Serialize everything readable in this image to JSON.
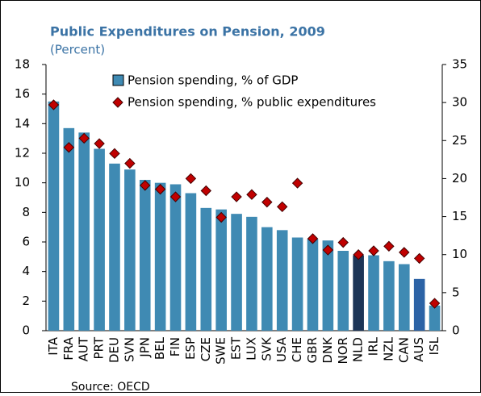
{
  "chart_data": {
    "type": "bar_line",
    "title": "Public Expenditures on Pension, 2009",
    "subtitle": "(Percent)",
    "source": "Source: OECD",
    "categories": [
      "ITA",
      "FRA",
      "AUT",
      "PRT",
      "DEU",
      "SVN",
      "JPN",
      "BEL",
      "FIN",
      "ESP",
      "CZE",
      "SWE",
      "EST",
      "LUX",
      "SVK",
      "USA",
      "CHE",
      "GBR",
      "DNK",
      "NOR",
      "NLD",
      "IRL",
      "NZL",
      "CAN",
      "AUS",
      "ISL"
    ],
    "series": [
      {
        "name": "Pension spending, % of GDP",
        "type": "bar",
        "axis": "y",
        "color": "#3f8ab3",
        "point_colors": {
          "20": "#1c3557",
          "24": "#2c63a6"
        },
        "values": [
          15.5,
          13.7,
          13.4,
          12.3,
          11.3,
          10.9,
          10.2,
          10.0,
          9.9,
          9.3,
          8.3,
          8.2,
          7.9,
          7.7,
          7.0,
          6.8,
          6.3,
          6.2,
          6.1,
          5.4,
          5.1,
          5.1,
          4.7,
          4.5,
          3.5,
          1.7
        ]
      },
      {
        "name": "Pension spending, % public expenditures",
        "type": "scatter",
        "axis": "y2",
        "color": "#c00000",
        "values": [
          29.7,
          24.1,
          25.3,
          24.6,
          23.3,
          22.0,
          19.1,
          18.6,
          17.6,
          20.0,
          18.4,
          14.9,
          17.6,
          17.9,
          16.9,
          16.3,
          19.4,
          12.1,
          10.6,
          11.6,
          10.0,
          10.5,
          11.1,
          10.3,
          9.5,
          3.6
        ]
      }
    ],
    "ylim": [
      0,
      18
    ],
    "yticks": [
      0,
      2,
      4,
      6,
      8,
      10,
      12,
      14,
      16,
      18
    ],
    "y2lim": [
      0,
      35
    ],
    "y2ticks": [
      0,
      5,
      10,
      15,
      20,
      25,
      30,
      35
    ],
    "legend": "top-left"
  }
}
